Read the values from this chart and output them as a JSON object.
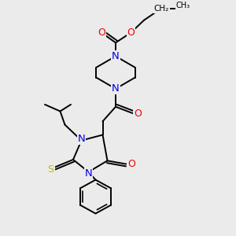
{
  "background_color": "#ebebeb",
  "atom_colors": {
    "N": "#0000ee",
    "O": "#ee0000",
    "S": "#bbbb00",
    "C": "#000000"
  },
  "bond_color": "#000000",
  "bond_width": 1.4,
  "figsize": [
    3.0,
    3.0
  ],
  "dpi": 100,
  "xlim": [
    0,
    10
  ],
  "ylim": [
    0,
    10.5
  ]
}
